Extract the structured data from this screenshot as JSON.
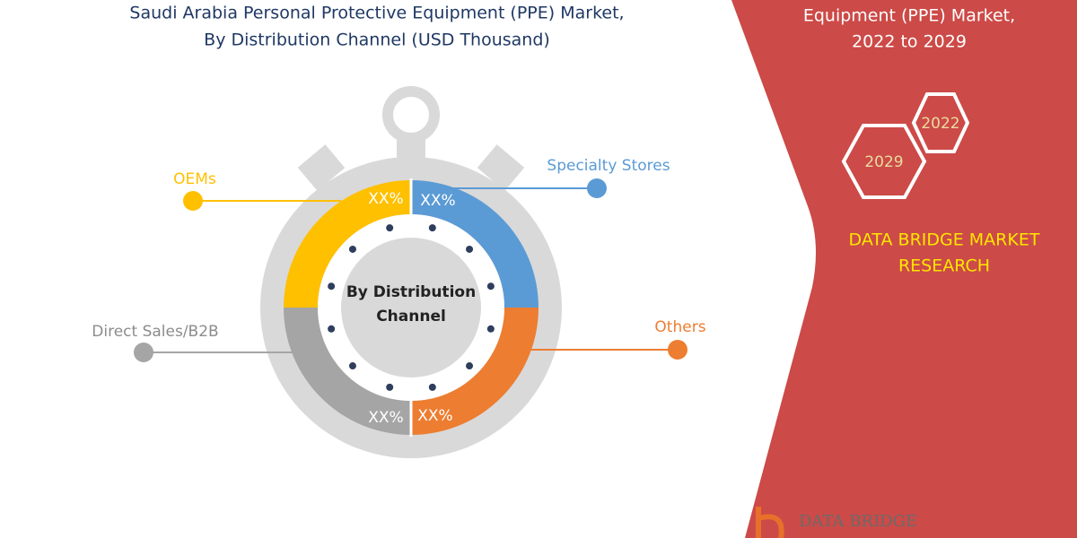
{
  "header": {
    "title_lines": [
      "Saudi Arabia Personal Protective Equipment (PPE) Market,",
      "By Distribution Channel (USD Thousand)"
    ]
  },
  "center_label": [
    "By Distribution",
    "Channel"
  ],
  "segments": [
    {
      "label": "OEMs",
      "value_label": "XX%"
    },
    {
      "label": "Specialty Stores",
      "value_label": "XX%"
    },
    {
      "label": "Others",
      "value_label": "XX%"
    },
    {
      "label": "Direct Sales/B2B",
      "value_label": "XX%"
    }
  ],
  "side_panel": {
    "title_lines": [
      "Equipment (PPE) Market,",
      "2022 to 2029"
    ],
    "years": [
      "2022",
      "2029"
    ],
    "brand_lines": [
      "DATA BRIDGE MARKET",
      "RESEARCH"
    ],
    "footer_logo": "DATA BRIDGE"
  }
}
